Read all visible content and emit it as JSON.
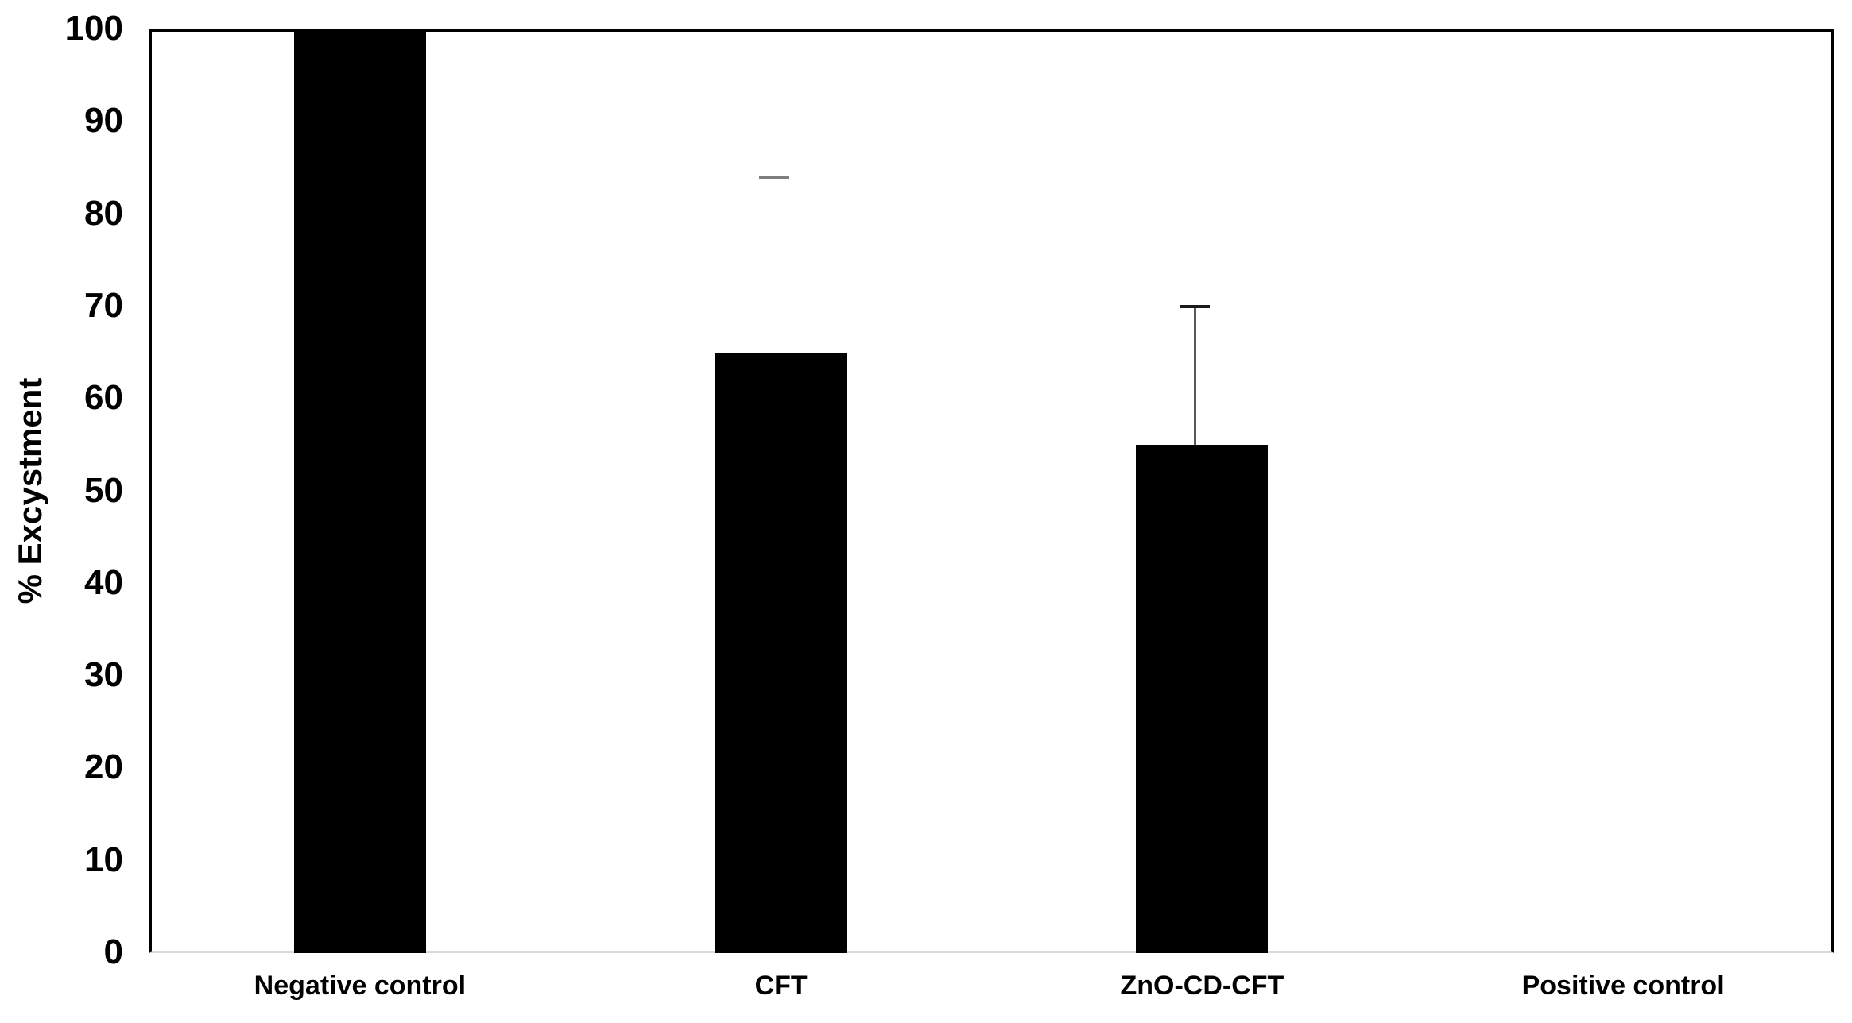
{
  "chart_data": {
    "type": "bar",
    "title": "",
    "xlabel": "",
    "ylabel": "% Excystment",
    "categories": [
      "Negative control",
      "CFT",
      "ZnO-CD-CFT",
      "Positive control"
    ],
    "values": [
      100,
      65,
      55,
      0
    ],
    "ylim": [
      0,
      100
    ],
    "yticks": [
      0,
      10,
      20,
      30,
      40,
      50,
      60,
      70,
      80,
      90,
      100
    ],
    "grid": false,
    "legend": false,
    "bar_color": "#000000",
    "frame_color": "#000000",
    "baseline_color": "#d9d9d9",
    "error_bars": [
      {
        "category": "CFT",
        "category_index": 1,
        "cap_value": 84,
        "line_from_bar_top": false,
        "cap_color": "#7f7f7f",
        "line_color": "#595959"
      },
      {
        "category": "ZnO-CD-CFT",
        "category_index": 2,
        "cap_value": 70,
        "line_from_bar_top": true,
        "cap_color": "#1a1a1a",
        "line_color": "#595959"
      }
    ]
  }
}
